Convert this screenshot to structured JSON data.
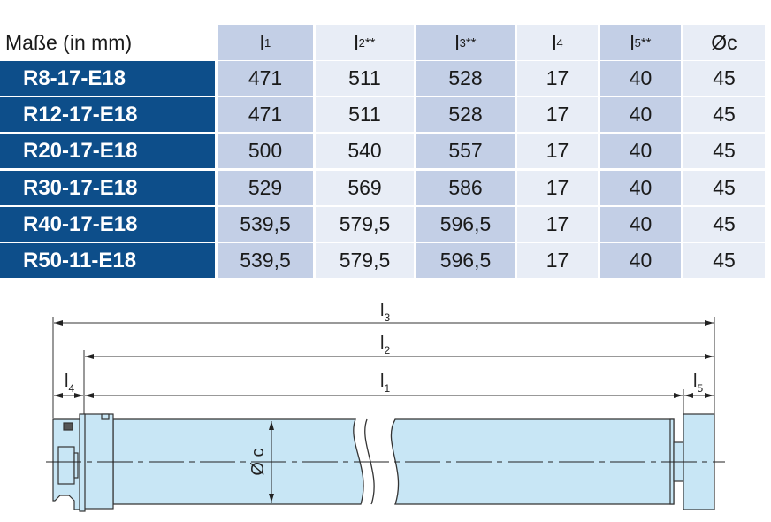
{
  "table": {
    "header_label": "Maße (in mm)",
    "columns": [
      {
        "base": "l",
        "sub": "1",
        "sup": ""
      },
      {
        "base": "l",
        "sub": "2",
        "sup": "**"
      },
      {
        "base": "l",
        "sub": "3",
        "sup": "**"
      },
      {
        "base": "l",
        "sub": "4",
        "sup": ""
      },
      {
        "base": "l",
        "sub": "5",
        "sup": "**"
      },
      {
        "base": "Øc",
        "sub": "",
        "sup": ""
      }
    ],
    "rows": [
      {
        "model": "R8-17-E18",
        "values": [
          "471",
          "511",
          "528",
          "17",
          "40",
          "45"
        ]
      },
      {
        "model": "R12-17-E18",
        "values": [
          "471",
          "511",
          "528",
          "17",
          "40",
          "45"
        ]
      },
      {
        "model": "R20-17-E18",
        "values": [
          "500",
          "540",
          "557",
          "17",
          "40",
          "45"
        ]
      },
      {
        "model": "R30-17-E18",
        "values": [
          "529",
          "569",
          "586",
          "17",
          "40",
          "45"
        ]
      },
      {
        "model": "R40-17-E18",
        "values": [
          "539,5",
          "579,5",
          "596,5",
          "17",
          "40",
          "45"
        ]
      },
      {
        "model": "R50-11-E18",
        "values": [
          "539,5",
          "579,5",
          "596,5",
          "17",
          "40",
          "45"
        ]
      }
    ]
  },
  "drawing": {
    "l3": {
      "base": "l",
      "sub": "3"
    },
    "l2": {
      "base": "l",
      "sub": "2"
    },
    "l1": {
      "base": "l",
      "sub": "1"
    },
    "l4": {
      "base": "l",
      "sub": "4"
    },
    "l5": {
      "base": "l",
      "sub": "5"
    },
    "diameter": "Ø c"
  },
  "colors": {
    "row_label_bg": "#0d4e8a",
    "col_dark": "#c3cfe6",
    "col_light": "#e8edf6",
    "tube_fill": "#c8e6f5"
  }
}
